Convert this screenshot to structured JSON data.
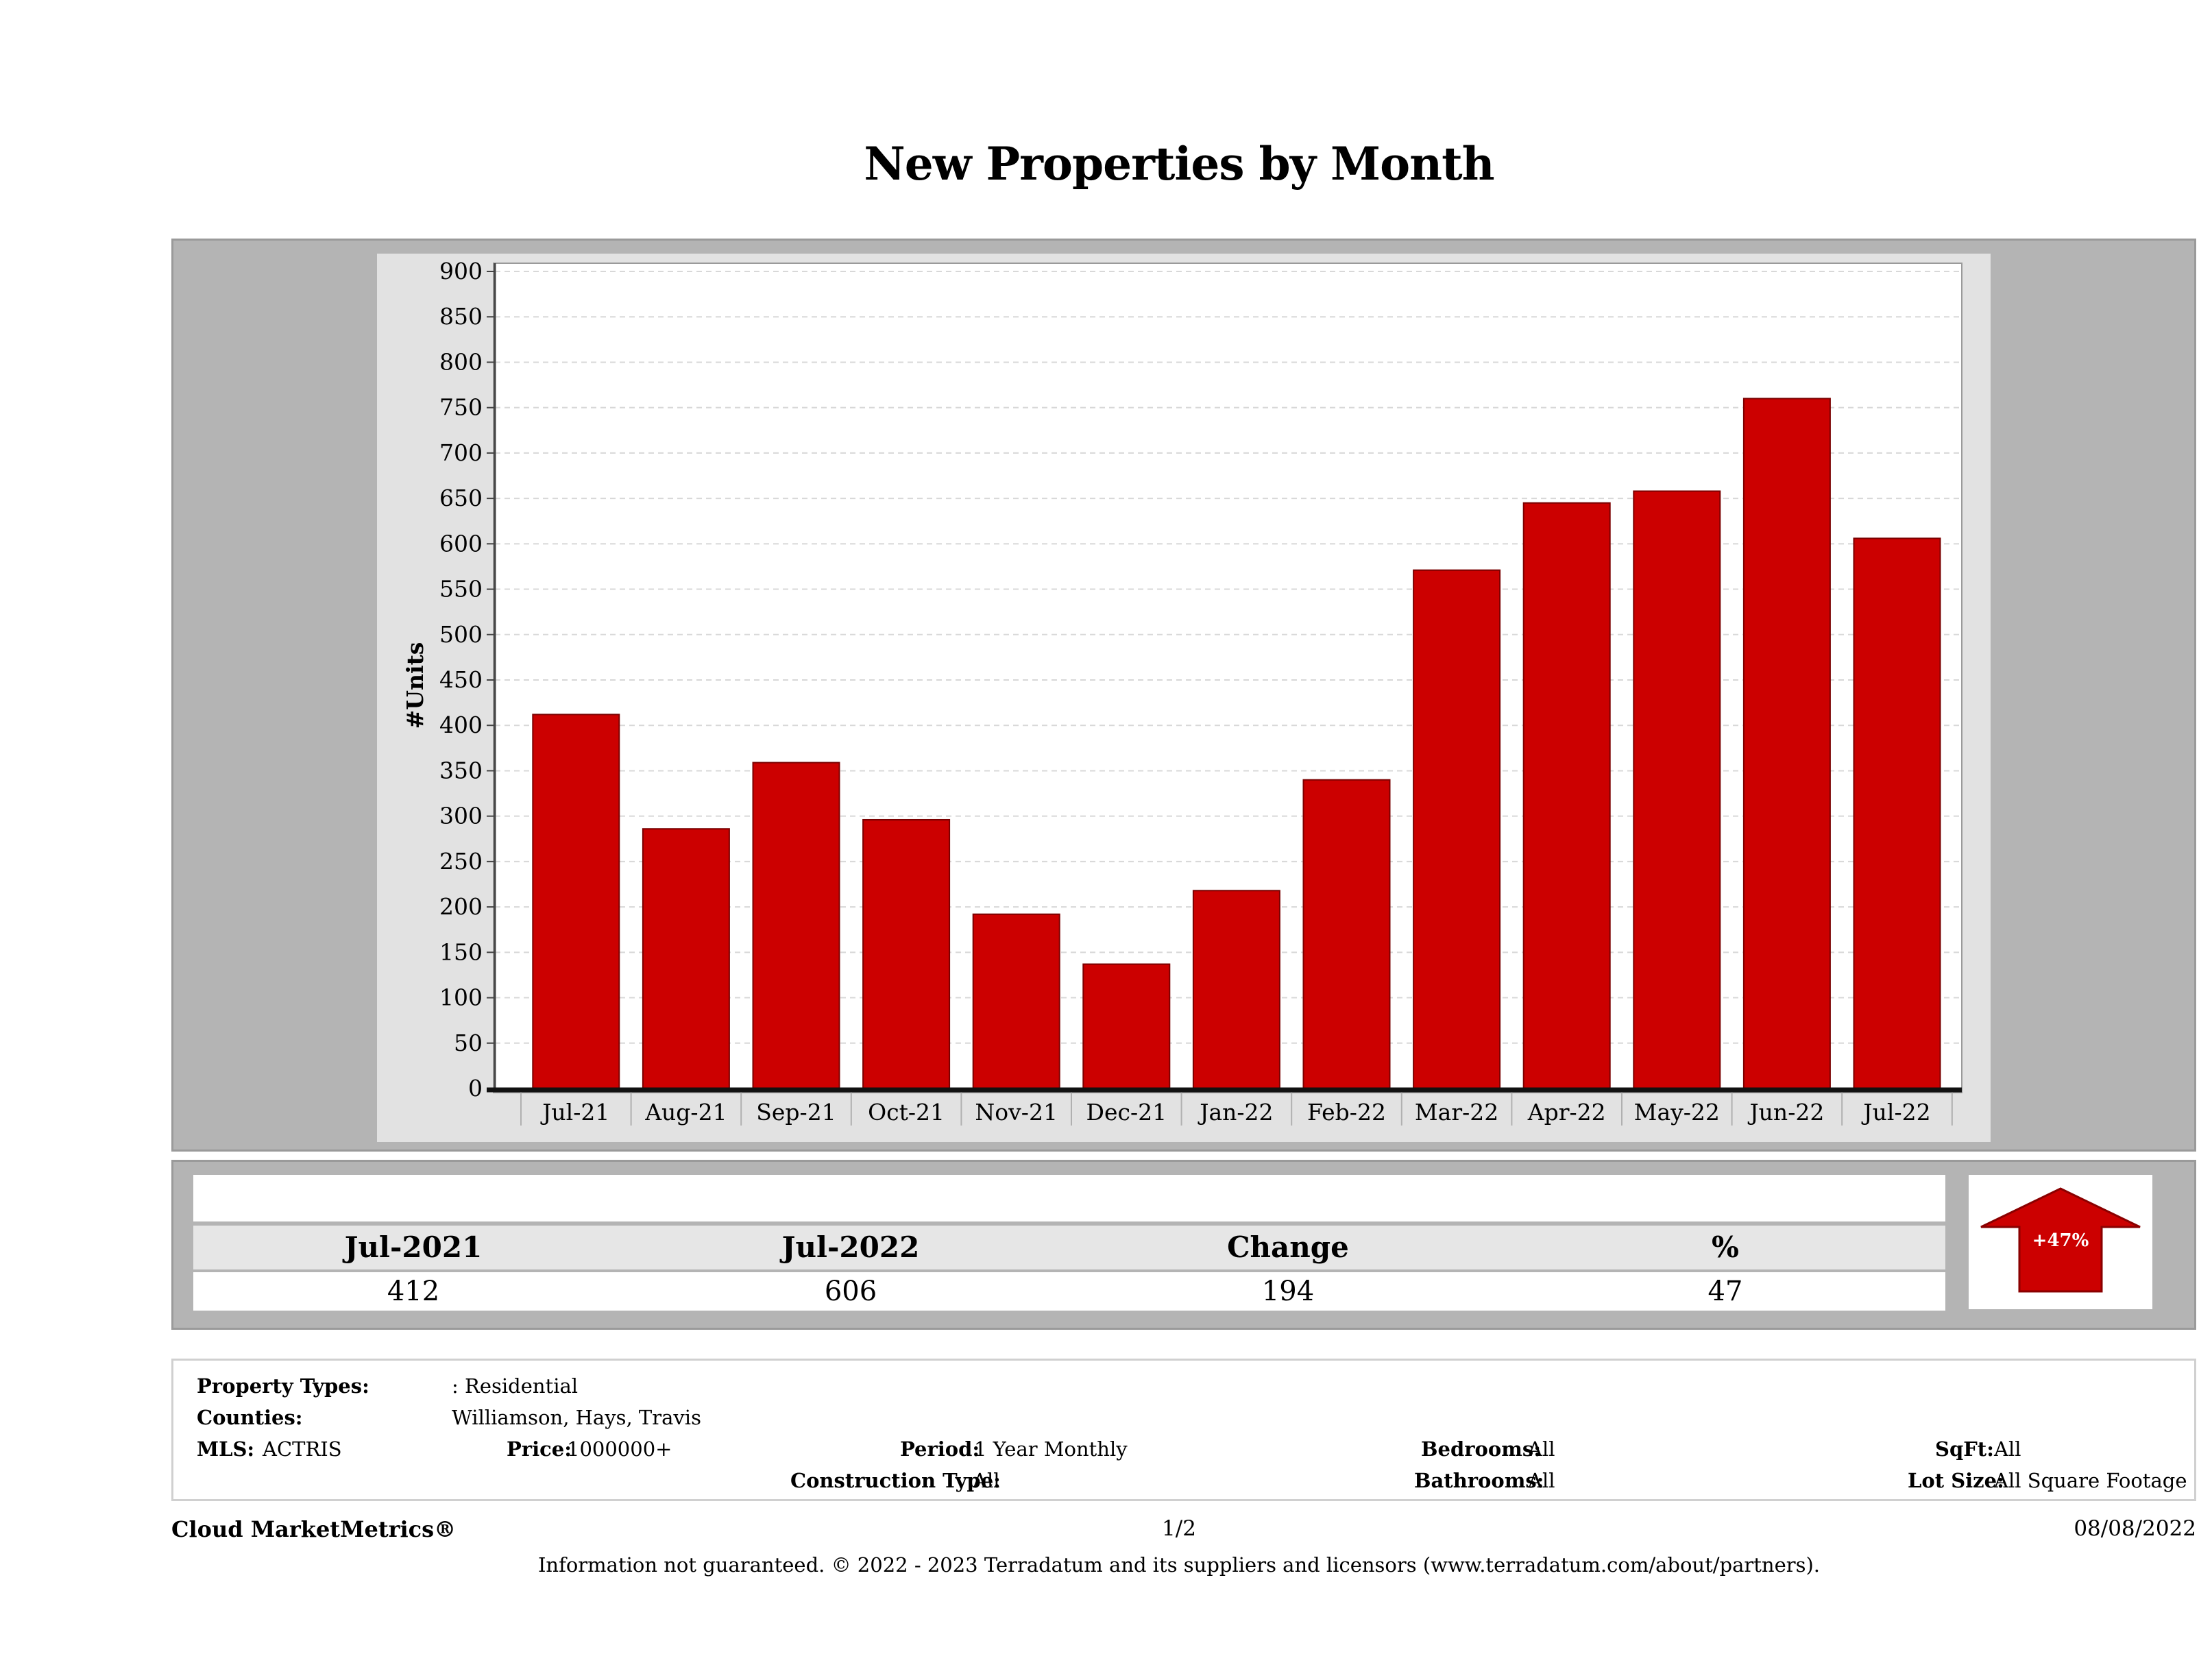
{
  "title": "New Properties by Month",
  "chart_data": {
    "type": "bar",
    "title": "New Properties by Month",
    "xlabel": "",
    "ylabel": "#Units",
    "categories": [
      "Jul-21",
      "Aug-21",
      "Sep-21",
      "Oct-21",
      "Nov-21",
      "Dec-21",
      "Jan-22",
      "Feb-22",
      "Mar-22",
      "Apr-22",
      "May-22",
      "Jun-22",
      "Jul-22"
    ],
    "values": [
      412,
      286,
      359,
      296,
      192,
      137,
      218,
      340,
      571,
      645,
      658,
      760,
      606
    ],
    "yticks": [
      0,
      50,
      100,
      150,
      200,
      250,
      300,
      350,
      400,
      450,
      500,
      550,
      600,
      650,
      700,
      750,
      800,
      850,
      900
    ],
    "ylim": [
      0,
      900
    ],
    "grid": true,
    "bar_color": "#cc0000"
  },
  "summary": {
    "headers": [
      "Jul-2021",
      "Jul-2022",
      "Change",
      "%"
    ],
    "values": [
      "412",
      "606",
      "194",
      "47"
    ],
    "arrow_label": "+47%",
    "arrow_color": "#cc0000"
  },
  "criteria": {
    "property_types_label": "Property Types:",
    "property_types_value": ": Residential",
    "counties_label": "Counties:",
    "counties_value": "Williamson, Hays, Travis",
    "mls_label": "MLS:",
    "mls_value": "ACTRIS",
    "price_label": "Price:",
    "price_value": "1000000+",
    "period_label": "Period:",
    "period_value": "1 Year Monthly",
    "construction_label": "Construction Type:",
    "construction_value": "All",
    "bedrooms_label": "Bedrooms:",
    "bedrooms_value": "All",
    "bathrooms_label": "Bathrooms:",
    "bathrooms_value": "All",
    "sqft_label": "SqFt:",
    "sqft_value": "All",
    "lotsize_label": "Lot Size:",
    "lotsize_value": "All Square Footage"
  },
  "footer": {
    "brand": "Cloud MarketMetrics®",
    "page": "1/2",
    "date": "08/08/2022",
    "disclaimer": "Information not guaranteed. © 2022 - 2023 Terradatum and its suppliers and licensors (www.terradatum.com/about/partners)."
  }
}
